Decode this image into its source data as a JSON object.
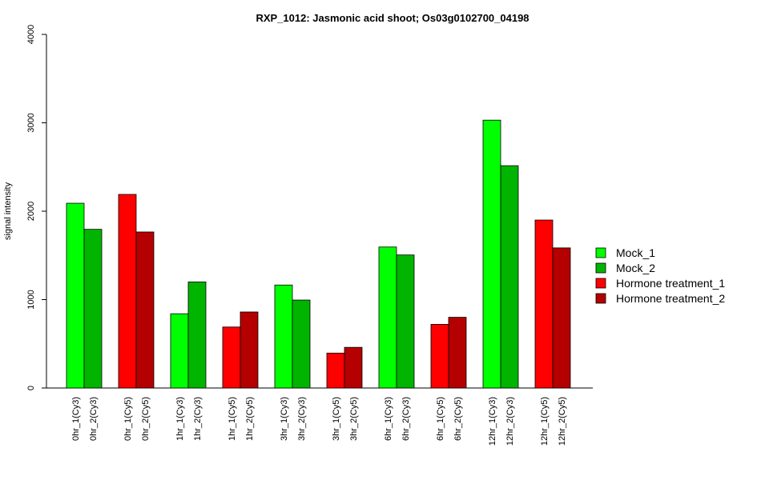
{
  "chart_data": {
    "type": "bar",
    "title": "RXP_1012: Jasmonic acid shoot; Os03g0102700_04198",
    "ylabel": "signal intensity",
    "xlabel": "",
    "ylim": [
      0,
      4000
    ],
    "yticks": [
      0,
      1000,
      2000,
      3000,
      4000
    ],
    "legend_position": "right",
    "grid": false,
    "bars": [
      {
        "label": "0hr_1(Cy3)",
        "value": 2090,
        "series": "Mock_1"
      },
      {
        "label": "0hr_2(Cy3)",
        "value": 1795,
        "series": "Mock_2"
      },
      {
        "label": "0hr_1(Cy5)",
        "value": 2190,
        "series": "Hormone treatment_1"
      },
      {
        "label": "0hr_2(Cy5)",
        "value": 1765,
        "series": "Hormone treatment_2"
      },
      {
        "label": "1hr_1(Cy3)",
        "value": 840,
        "series": "Mock_1"
      },
      {
        "label": "1hr_2(Cy3)",
        "value": 1200,
        "series": "Mock_2"
      },
      {
        "label": "1hr_1(Cy5)",
        "value": 690,
        "series": "Hormone treatment_1"
      },
      {
        "label": "1hr_2(Cy5)",
        "value": 860,
        "series": "Hormone treatment_2"
      },
      {
        "label": "3hr_1(Cy3)",
        "value": 1165,
        "series": "Mock_1"
      },
      {
        "label": "3hr_2(Cy3)",
        "value": 995,
        "series": "Mock_2"
      },
      {
        "label": "3hr_1(Cy5)",
        "value": 395,
        "series": "Hormone treatment_1"
      },
      {
        "label": "3hr_2(Cy5)",
        "value": 460,
        "series": "Hormone treatment_2"
      },
      {
        "label": "6hr_1(Cy3)",
        "value": 1595,
        "series": "Mock_1"
      },
      {
        "label": "6hr_2(Cy3)",
        "value": 1505,
        "series": "Mock_2"
      },
      {
        "label": "6hr_1(Cy5)",
        "value": 720,
        "series": "Hormone treatment_1"
      },
      {
        "label": "6hr_2(Cy5)",
        "value": 800,
        "series": "Hormone treatment_2"
      },
      {
        "label": "12hr_1(Cy3)",
        "value": 3030,
        "series": "Mock_1"
      },
      {
        "label": "12hr_2(Cy3)",
        "value": 2515,
        "series": "Mock_2"
      },
      {
        "label": "12hr_1(Cy5)",
        "value": 1900,
        "series": "Hormone treatment_1"
      },
      {
        "label": "12hr_2(Cy5)",
        "value": 1585,
        "series": "Hormone treatment_2"
      }
    ],
    "legend": [
      {
        "name": "Mock_1",
        "color": "#00ff00"
      },
      {
        "name": "Mock_2",
        "color": "#00b400"
      },
      {
        "name": "Hormone treatment_1",
        "color": "#ff0000"
      },
      {
        "name": "Hormone treatment_2",
        "color": "#b40000"
      }
    ]
  }
}
